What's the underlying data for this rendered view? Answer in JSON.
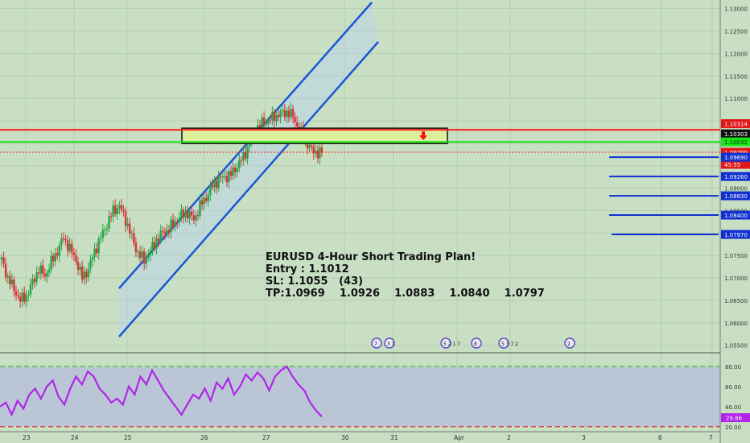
{
  "instrument": "EURUSD",
  "annotation": {
    "lines": [
      "EURUSD 4-Hour Short Trading Plan!",
      "Entry : 1.1012",
      "SL: 1.1055   (43)",
      "TP:1.0969    1.0926    1.0883    1.0840    1.0797"
    ]
  },
  "colors": {
    "background": "#c8dfc4",
    "bull": "#26a644",
    "bear": "#e0303a",
    "channel": "#1a56d6",
    "resistance": "#ff1a1a",
    "support": "#19e619",
    "tp": "#1030d0",
    "rsi": "#b026e8",
    "rsi_band": "#b7bfda",
    "zone": "#dcef9c"
  },
  "chart_data": [
    {
      "type": "candlestick",
      "yaxis_ticks": [
        1.13,
        1.125,
        1.12,
        1.115,
        1.11,
        1.105,
        1.1,
        1.095,
        1.09,
        1.085,
        1.08,
        1.075,
        1.07,
        1.065,
        1.06,
        1.055
      ],
      "yaxis_tick_labels": [
        "1.13000",
        "1.12500",
        "1.12000",
        "1.11500",
        "1.11000",
        "1.10500",
        "1.10000",
        "1.09500",
        "1.09000",
        "1.08500",
        "1.08000",
        "1.07500",
        "1.07000",
        "1.06500",
        "1.06000",
        "1.05500"
      ],
      "ylim": [
        1.0535,
        1.1312
      ],
      "xaxis_labels": [
        "23",
        "24",
        "25",
        "26",
        "27",
        "30",
        "31",
        "Apr",
        "2",
        "3",
        "6",
        "7"
      ],
      "price_levels": [
        {
          "name": "resistance",
          "value": 1.1031,
          "label": "1.10314"
        },
        {
          "name": "zone-top",
          "value": 1.103,
          "label": "1.10303"
        },
        {
          "name": "support",
          "value": 1.1003,
          "label": "1.10032"
        },
        {
          "name": "current",
          "value": 1.098,
          "label": "1.09799"
        },
        {
          "name": "countdown",
          "value": 1.0953,
          "label": "45:55"
        },
        {
          "name": "tp1",
          "value": 1.0969,
          "label": "1.09690"
        },
        {
          "name": "tp2",
          "value": 1.0926,
          "label": "1.09260"
        },
        {
          "name": "tp3",
          "value": 1.0883,
          "label": "1.08830"
        },
        {
          "name": "tp4",
          "value": 1.084,
          "label": "1.08400"
        },
        {
          "name": "tp5",
          "value": 1.0797,
          "label": "1.07970"
        }
      ],
      "sell_zone": {
        "top": 1.103,
        "bottom": 1.1003
      },
      "close_path": [
        1.074,
        1.07,
        1.0675,
        1.065,
        1.066,
        1.069,
        1.072,
        1.0705,
        1.0735,
        1.076,
        1.079,
        1.0765,
        1.074,
        1.07,
        1.072,
        1.076,
        1.079,
        1.082,
        1.085,
        1.086,
        1.083,
        1.079,
        1.0755,
        1.074,
        1.076,
        1.0785,
        1.08,
        1.081,
        1.0825,
        1.084,
        1.0845,
        1.083,
        1.086,
        1.088,
        1.0905,
        1.092,
        1.0925,
        1.093,
        1.095,
        1.097,
        1.1,
        1.103,
        1.1045,
        1.105,
        1.106,
        1.1065,
        1.107,
        1.106,
        1.103,
        1.1005,
        1.0985,
        1.0979
      ]
    },
    {
      "type": "line",
      "name": "RSI",
      "yaxis_tick_labels": [
        "80.00",
        "60.00",
        "40.00",
        "20.00"
      ],
      "ylim": [
        15,
        92
      ],
      "band": [
        20,
        80
      ],
      "current_label": "29.86",
      "values": [
        40,
        44,
        32,
        46,
        38,
        52,
        58,
        48,
        60,
        66,
        50,
        42,
        58,
        70,
        62,
        75,
        70,
        58,
        52,
        44,
        48,
        42,
        60,
        52,
        70,
        62,
        76,
        66,
        56,
        48,
        40,
        32,
        42,
        52,
        48,
        58,
        46,
        64,
        58,
        68,
        52,
        60,
        72,
        66,
        74,
        68,
        56,
        70,
        76,
        80,
        70,
        62,
        56,
        44,
        36,
        30
      ]
    }
  ],
  "markers": [
    {
      "label": "7"
    },
    {
      "label": "3 1"
    },
    {
      "label": "5 2 1 7"
    },
    {
      "label": "8"
    },
    {
      "label": "5 3 7 2"
    },
    {
      "label": "2"
    }
  ]
}
